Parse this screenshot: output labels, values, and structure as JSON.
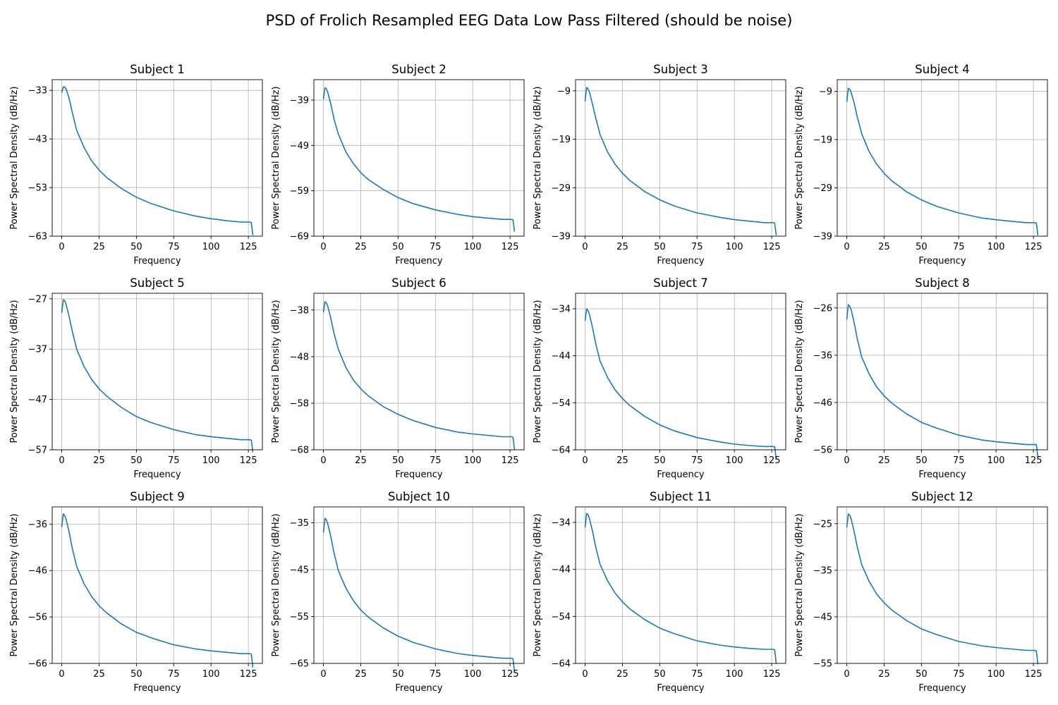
{
  "figure_title": "PSD of Frolich Resampled EEG Data Low Pass Filtered (should be noise)",
  "colors": {
    "line": "#1f77b4",
    "grid": "#b0b0b0",
    "axes": "#000000"
  },
  "chart_data": [
    {
      "type": "line",
      "title": "Subject 1",
      "xlabel": "Frequency",
      "ylabel": "Power Spectral Density (dB/Hz)",
      "xlim": [
        -6.4,
        134.4
      ],
      "ylim": [
        -63,
        -30.8
      ],
      "xticks": [
        0,
        25,
        50,
        75,
        100,
        125
      ],
      "yticks": [
        -33,
        -43,
        -53,
        -63
      ],
      "grid": true,
      "x": [
        0,
        1,
        2,
        3,
        5,
        7,
        10,
        15,
        20,
        25,
        30,
        40,
        50,
        60,
        75,
        90,
        100,
        110,
        120,
        126,
        127,
        128
      ],
      "y": [
        -33.5,
        -32.3,
        -32.3,
        -32.8,
        -34.7,
        -37.5,
        -41.2,
        -44.8,
        -47.5,
        -49.4,
        -50.9,
        -53.2,
        -55.0,
        -56.3,
        -57.8,
        -58.9,
        -59.4,
        -59.8,
        -60.1,
        -60.1,
        -60.2,
        -62.8
      ]
    },
    {
      "type": "line",
      "title": "Subject 2",
      "xlabel": "Frequency",
      "ylabel": "Power Spectral Density (dB/Hz)",
      "xlim": [
        -6.4,
        134.4
      ],
      "ylim": [
        -69,
        -34.5
      ],
      "xticks": [
        0,
        25,
        50,
        75,
        100,
        125
      ],
      "yticks": [
        -39,
        -49,
        -59,
        -69
      ],
      "grid": true,
      "x": [
        0,
        1,
        2,
        3,
        5,
        7,
        10,
        15,
        20,
        25,
        30,
        40,
        50,
        60,
        75,
        90,
        100,
        110,
        120,
        126,
        127,
        128
      ],
      "y": [
        -38.8,
        -36.3,
        -36.5,
        -37.4,
        -39.9,
        -43.1,
        -46.5,
        -50.4,
        -53.0,
        -55.0,
        -56.5,
        -58.7,
        -60.5,
        -61.8,
        -63.2,
        -64.2,
        -64.7,
        -65.0,
        -65.3,
        -65.3,
        -65.4,
        -68.0
      ]
    },
    {
      "type": "line",
      "title": "Subject 3",
      "xlabel": "Frequency",
      "ylabel": "Power Spectral Density (dB/Hz)",
      "xlim": [
        -6.4,
        134.4
      ],
      "ylim": [
        -39,
        -6.7
      ],
      "xticks": [
        0,
        25,
        50,
        75,
        100,
        125
      ],
      "yticks": [
        -9,
        -19,
        -29,
        -39
      ],
      "grid": true,
      "x": [
        0,
        1,
        2,
        3,
        5,
        7,
        10,
        15,
        20,
        25,
        30,
        40,
        50,
        60,
        75,
        90,
        100,
        110,
        120,
        126,
        127,
        128
      ],
      "y": [
        -11.2,
        -8.3,
        -8.6,
        -9.4,
        -11.8,
        -14.5,
        -18.0,
        -21.6,
        -24.1,
        -26.0,
        -27.5,
        -29.8,
        -31.5,
        -32.8,
        -34.2,
        -35.1,
        -35.6,
        -35.9,
        -36.2,
        -36.2,
        -36.3,
        -38.8
      ]
    },
    {
      "type": "line",
      "title": "Subject 4",
      "xlabel": "Frequency",
      "ylabel": "Power Spectral Density (dB/Hz)",
      "xlim": [
        -6.4,
        134.4
      ],
      "ylim": [
        -39,
        -6.6
      ],
      "xticks": [
        0,
        25,
        50,
        75,
        100,
        125
      ],
      "yticks": [
        -9,
        -19,
        -29,
        -39
      ],
      "grid": true,
      "x": [
        0,
        1,
        2,
        3,
        5,
        7,
        10,
        15,
        20,
        25,
        30,
        40,
        50,
        60,
        75,
        90,
        100,
        110,
        120,
        126,
        127,
        128
      ],
      "y": [
        -11.2,
        -8.4,
        -8.6,
        -9.3,
        -11.5,
        -14.3,
        -17.8,
        -21.5,
        -24.1,
        -26.0,
        -27.5,
        -29.8,
        -31.5,
        -32.8,
        -34.2,
        -35.2,
        -35.6,
        -35.9,
        -36.2,
        -36.2,
        -36.3,
        -38.8
      ]
    },
    {
      "type": "line",
      "title": "Subject 5",
      "xlabel": "Frequency",
      "ylabel": "Power Spectral Density (dB/Hz)",
      "xlim": [
        -6.4,
        134.4
      ],
      "ylim": [
        -57,
        -25.9
      ],
      "xticks": [
        0,
        25,
        50,
        75,
        100,
        125
      ],
      "yticks": [
        -27,
        -37,
        -47,
        -57
      ],
      "grid": true,
      "x": [
        0,
        1,
        2,
        3,
        5,
        7,
        10,
        15,
        20,
        25,
        30,
        40,
        50,
        60,
        75,
        90,
        100,
        110,
        120,
        126,
        127,
        128
      ],
      "y": [
        -29.8,
        -27.2,
        -27.4,
        -28.2,
        -30.6,
        -33.4,
        -37.0,
        -40.5,
        -43.0,
        -44.9,
        -46.3,
        -48.6,
        -50.4,
        -51.6,
        -53.0,
        -54.0,
        -54.4,
        -54.7,
        -55.0,
        -55.0,
        -55.1,
        -57.5
      ]
    },
    {
      "type": "line",
      "title": "Subject 6",
      "xlabel": "Frequency",
      "ylabel": "Power Spectral Density (dB/Hz)",
      "xlim": [
        -6.4,
        134.4
      ],
      "ylim": [
        -68,
        -34.4
      ],
      "xticks": [
        0,
        25,
        50,
        75,
        100,
        125
      ],
      "yticks": [
        -38,
        -48,
        -58,
        -68
      ],
      "grid": true,
      "x": [
        0,
        1,
        2,
        3,
        5,
        7,
        10,
        15,
        20,
        25,
        30,
        40,
        50,
        60,
        75,
        90,
        100,
        110,
        120,
        126,
        127,
        128
      ],
      "y": [
        -38.5,
        -36.2,
        -36.5,
        -37.3,
        -39.8,
        -42.9,
        -46.4,
        -50.3,
        -53.0,
        -54.9,
        -56.4,
        -58.7,
        -60.4,
        -61.7,
        -63.2,
        -64.2,
        -64.6,
        -64.9,
        -65.2,
        -65.2,
        -65.3,
        -67.9
      ]
    },
    {
      "type": "line",
      "title": "Subject 7",
      "xlabel": "Frequency",
      "ylabel": "Power Spectral Density (dB/Hz)",
      "xlim": [
        -6.4,
        134.4
      ],
      "ylim": [
        -64,
        -30.7
      ],
      "xticks": [
        0,
        25,
        50,
        75,
        100,
        125
      ],
      "yticks": [
        -34,
        -44,
        -54,
        -64
      ],
      "grid": true,
      "x": [
        0,
        1,
        2,
        3,
        5,
        7,
        10,
        15,
        20,
        25,
        30,
        40,
        50,
        60,
        75,
        90,
        100,
        110,
        120,
        126,
        127,
        128
      ],
      "y": [
        -36.6,
        -34.0,
        -34.4,
        -35.3,
        -38.0,
        -41.3,
        -45.1,
        -48.6,
        -51.2,
        -53.1,
        -54.6,
        -56.9,
        -58.7,
        -60.0,
        -61.4,
        -62.3,
        -62.8,
        -63.1,
        -63.3,
        -63.3,
        -63.4,
        -66.0
      ]
    },
    {
      "type": "line",
      "title": "Subject 8",
      "xlabel": "Frequency",
      "ylabel": "Power Spectral Density (dB/Hz)",
      "xlim": [
        -6.4,
        134.4
      ],
      "ylim": [
        -56,
        -22.9
      ],
      "xticks": [
        0,
        25,
        50,
        75,
        100,
        125
      ],
      "yticks": [
        -26,
        -36,
        -46,
        -56
      ],
      "grid": true,
      "x": [
        0,
        1,
        2,
        3,
        5,
        7,
        10,
        15,
        20,
        25,
        30,
        40,
        50,
        60,
        75,
        90,
        100,
        110,
        120,
        126,
        127,
        128
      ],
      "y": [
        -28.5,
        -25.3,
        -25.7,
        -26.5,
        -29.2,
        -32.5,
        -36.4,
        -40.0,
        -42.7,
        -44.6,
        -46.1,
        -48.4,
        -50.2,
        -51.4,
        -52.9,
        -53.9,
        -54.3,
        -54.6,
        -54.9,
        -54.9,
        -54.9,
        -57.6
      ]
    },
    {
      "type": "line",
      "title": "Subject 9",
      "xlabel": "Frequency",
      "ylabel": "Power Spectral Density (dB/Hz)",
      "xlim": [
        -6.4,
        134.4
      ],
      "ylim": [
        -66,
        -32.3
      ],
      "xticks": [
        0,
        25,
        50,
        75,
        100,
        125
      ],
      "yticks": [
        -36,
        -46,
        -56,
        -66
      ],
      "grid": true,
      "x": [
        0,
        1,
        2,
        3,
        5,
        7,
        10,
        15,
        20,
        25,
        30,
        40,
        50,
        60,
        75,
        90,
        100,
        110,
        120,
        126,
        127,
        128
      ],
      "y": [
        -36.6,
        -33.8,
        -34.2,
        -35.1,
        -37.8,
        -41.2,
        -45.1,
        -48.9,
        -51.6,
        -53.6,
        -55.1,
        -57.5,
        -59.3,
        -60.5,
        -62.0,
        -62.9,
        -63.3,
        -63.6,
        -63.9,
        -63.9,
        -64.0,
        -66.9
      ]
    },
    {
      "type": "line",
      "title": "Subject 10",
      "xlabel": "Frequency",
      "ylabel": "Power Spectral Density (dB/Hz)",
      "xlim": [
        -6.4,
        134.4
      ],
      "ylim": [
        -65,
        -31.6
      ],
      "xticks": [
        0,
        25,
        50,
        75,
        100,
        125
      ],
      "yticks": [
        -35,
        -45,
        -55,
        -65
      ],
      "grid": true,
      "x": [
        0,
        1,
        2,
        3,
        5,
        7,
        10,
        15,
        20,
        25,
        30,
        40,
        50,
        60,
        75,
        90,
        100,
        110,
        120,
        126,
        127,
        128
      ],
      "y": [
        -37.1,
        -34.0,
        -34.4,
        -35.3,
        -38.0,
        -41.3,
        -45.2,
        -48.9,
        -51.6,
        -53.6,
        -55.1,
        -57.4,
        -59.2,
        -60.5,
        -61.9,
        -62.9,
        -63.3,
        -63.6,
        -63.9,
        -63.9,
        -64.0,
        -66.8
      ]
    },
    {
      "type": "line",
      "title": "Subject 11",
      "xlabel": "Frequency",
      "ylabel": "Power Spectral Density (dB/Hz)",
      "xlim": [
        -6.4,
        134.4
      ],
      "ylim": [
        -64,
        -30.7
      ],
      "xticks": [
        0,
        25,
        50,
        75,
        100,
        125
      ],
      "yticks": [
        -34,
        -44,
        -54,
        -64
      ],
      "grid": true,
      "x": [
        0,
        1,
        2,
        3,
        5,
        7,
        10,
        15,
        20,
        25,
        30,
        40,
        50,
        60,
        75,
        90,
        100,
        110,
        120,
        126,
        127,
        128
      ],
      "y": [
        -35.1,
        -32.1,
        -32.4,
        -33.3,
        -35.9,
        -39.1,
        -42.9,
        -46.4,
        -49.0,
        -50.9,
        -52.4,
        -54.7,
        -56.5,
        -57.7,
        -59.2,
        -60.1,
        -60.5,
        -60.8,
        -61.0,
        -61.0,
        -61.1,
        -64.0
      ]
    },
    {
      "type": "line",
      "title": "Subject 12",
      "xlabel": "Frequency",
      "ylabel": "Power Spectral Density (dB/Hz)",
      "xlim": [
        -6.4,
        134.4
      ],
      "ylim": [
        -55,
        -21.4
      ],
      "xticks": [
        0,
        25,
        50,
        75,
        100,
        125
      ],
      "yticks": [
        -25,
        -35,
        -45,
        -55
      ],
      "grid": true,
      "x": [
        0,
        1,
        2,
        3,
        5,
        7,
        10,
        15,
        20,
        25,
        30,
        40,
        50,
        60,
        75,
        90,
        100,
        110,
        120,
        126,
        127,
        128
      ],
      "y": [
        -25.8,
        -22.9,
        -23.2,
        -24.1,
        -26.8,
        -30.0,
        -33.8,
        -37.4,
        -40.1,
        -42.0,
        -43.5,
        -45.8,
        -47.6,
        -48.8,
        -50.3,
        -51.2,
        -51.6,
        -51.9,
        -52.2,
        -52.2,
        -52.3,
        -55.2
      ]
    }
  ]
}
